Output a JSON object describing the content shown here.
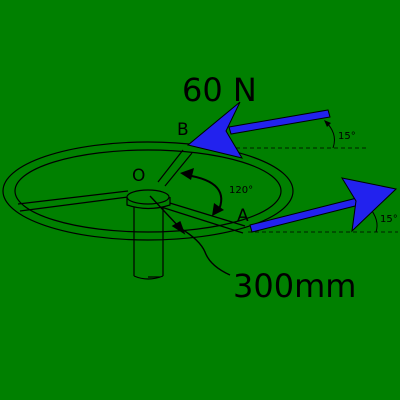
{
  "diagram": {
    "force_label": "60 N",
    "point_b": "B",
    "point_a": "A",
    "center_label": "O",
    "angle_between_spokes": "120°",
    "angle_at_b": "15°",
    "angle_at_a": "15°",
    "radius_label": "300mm"
  },
  "colors": {
    "background": "#008000",
    "arrow": "#2222EE",
    "line": "#000000"
  }
}
